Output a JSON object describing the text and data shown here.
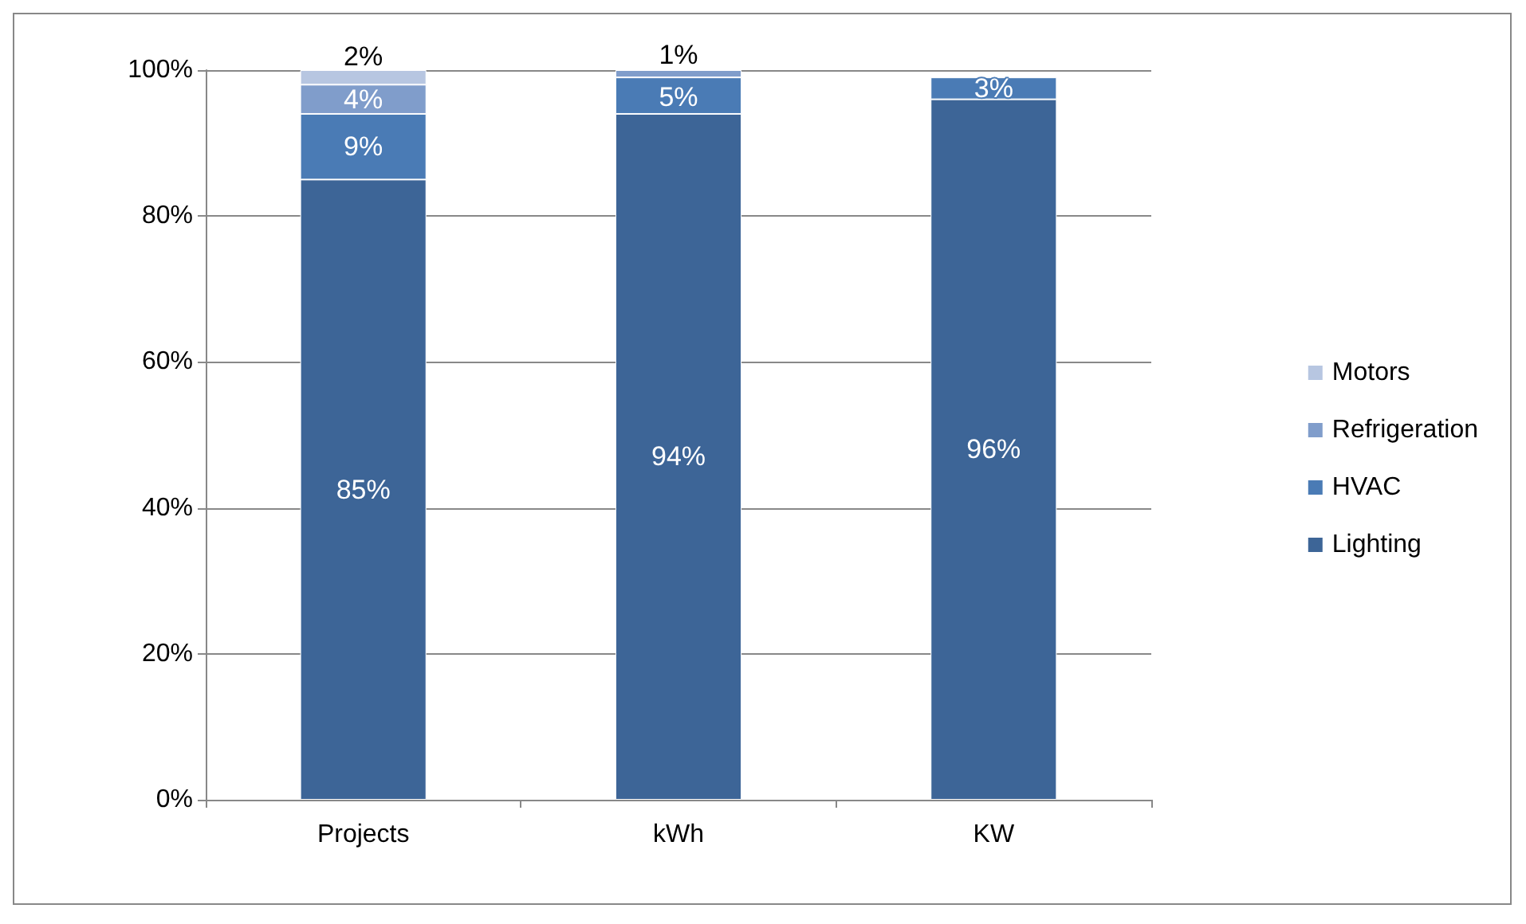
{
  "chart_data": {
    "type": "bar",
    "stacked": true,
    "categories": [
      "Projects",
      "kWh",
      "KW"
    ],
    "series": [
      {
        "name": "Lighting",
        "color": "#3d6597",
        "values": [
          85,
          94,
          96
        ],
        "value_labels": [
          "85%",
          "94%",
          "96%"
        ]
      },
      {
        "name": "HVAC",
        "color": "#4a7bb5",
        "values": [
          9,
          5,
          3
        ],
        "value_labels": [
          "9%",
          "5%",
          "3%"
        ]
      },
      {
        "name": "Refrigeration",
        "color": "#809dcb",
        "values": [
          4,
          1,
          null
        ],
        "value_labels": [
          "4%",
          "1%",
          null
        ]
      },
      {
        "name": "Motors",
        "color": "#b7c6e1",
        "values": [
          2,
          null,
          null
        ],
        "value_labels": [
          "2%",
          null,
          null
        ]
      }
    ],
    "ylim": [
      0,
      100
    ],
    "yticks": [
      {
        "value": 0,
        "label": "0%"
      },
      {
        "value": 20,
        "label": "20%"
      },
      {
        "value": 40,
        "label": "40%"
      },
      {
        "value": 60,
        "label": "60%"
      },
      {
        "value": 80,
        "label": "80%"
      },
      {
        "value": 100,
        "label": "100%"
      }
    ],
    "grid": "y",
    "legend": "right"
  }
}
